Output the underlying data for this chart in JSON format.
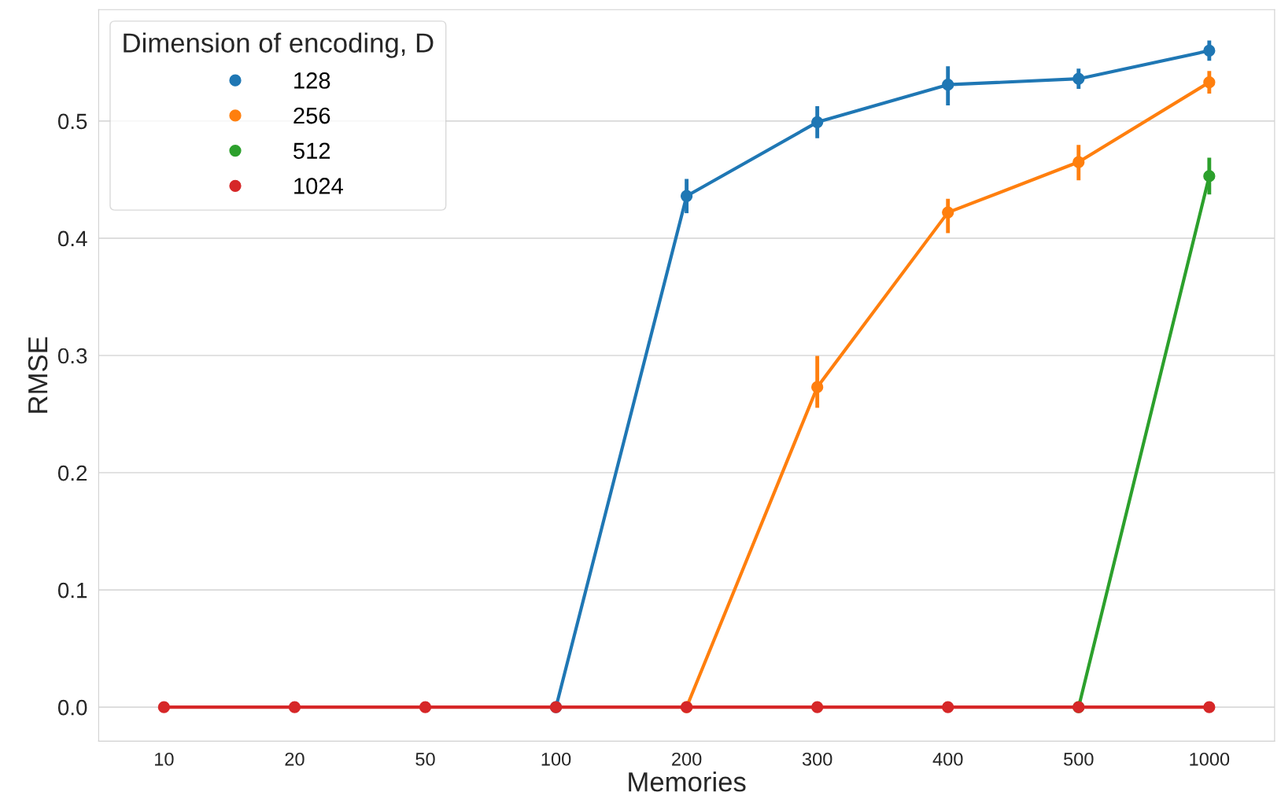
{
  "chart_data": {
    "type": "line",
    "xlabel": "Memories",
    "ylabel": "RMSE",
    "legend_title": "Dimension of encoding, D",
    "categories": [
      "10",
      "20",
      "50",
      "100",
      "200",
      "300",
      "400",
      "500",
      "1000"
    ],
    "series": [
      {
        "name": "128",
        "color": "#1f77b4",
        "values": [
          null,
          null,
          null,
          0,
          0.436,
          0.499,
          0.531,
          0.536,
          0.56
        ],
        "errors": [
          null,
          null,
          null,
          null,
          [
            0.423,
            0.449
          ],
          [
            0.487,
            0.511
          ],
          [
            0.515,
            0.545
          ],
          [
            0.529,
            0.543
          ],
          [
            0.553,
            0.567
          ]
        ]
      },
      {
        "name": "256",
        "color": "#ff7f0e",
        "values": [
          null,
          null,
          null,
          null,
          0,
          0.273,
          0.422,
          0.465,
          0.533
        ],
        "errors": [
          null,
          null,
          null,
          null,
          null,
          [
            0.257,
            0.298
          ],
          [
            0.406,
            0.432
          ],
          [
            0.451,
            0.478
          ],
          [
            0.525,
            0.541
          ]
        ]
      },
      {
        "name": "512",
        "color": "#2ca02c",
        "values": [
          null,
          null,
          null,
          null,
          null,
          null,
          null,
          0,
          0.453
        ],
        "errors": [
          null,
          null,
          null,
          null,
          null,
          null,
          null,
          null,
          [
            0.439,
            0.467
          ]
        ]
      },
      {
        "name": "1024",
        "color": "#d62728",
        "values": [
          0,
          0,
          0,
          0,
          0,
          0,
          0,
          0,
          0
        ]
      }
    ],
    "ylim": [
      -0.029,
      0.595
    ],
    "yticks": [
      {
        "value": 0,
        "label": "0.0"
      },
      0.1,
      0.2,
      0.3,
      0.4,
      0.5
    ],
    "grid": "y",
    "legend": "top left",
    "marker": "circle",
    "line_style": "solid"
  }
}
